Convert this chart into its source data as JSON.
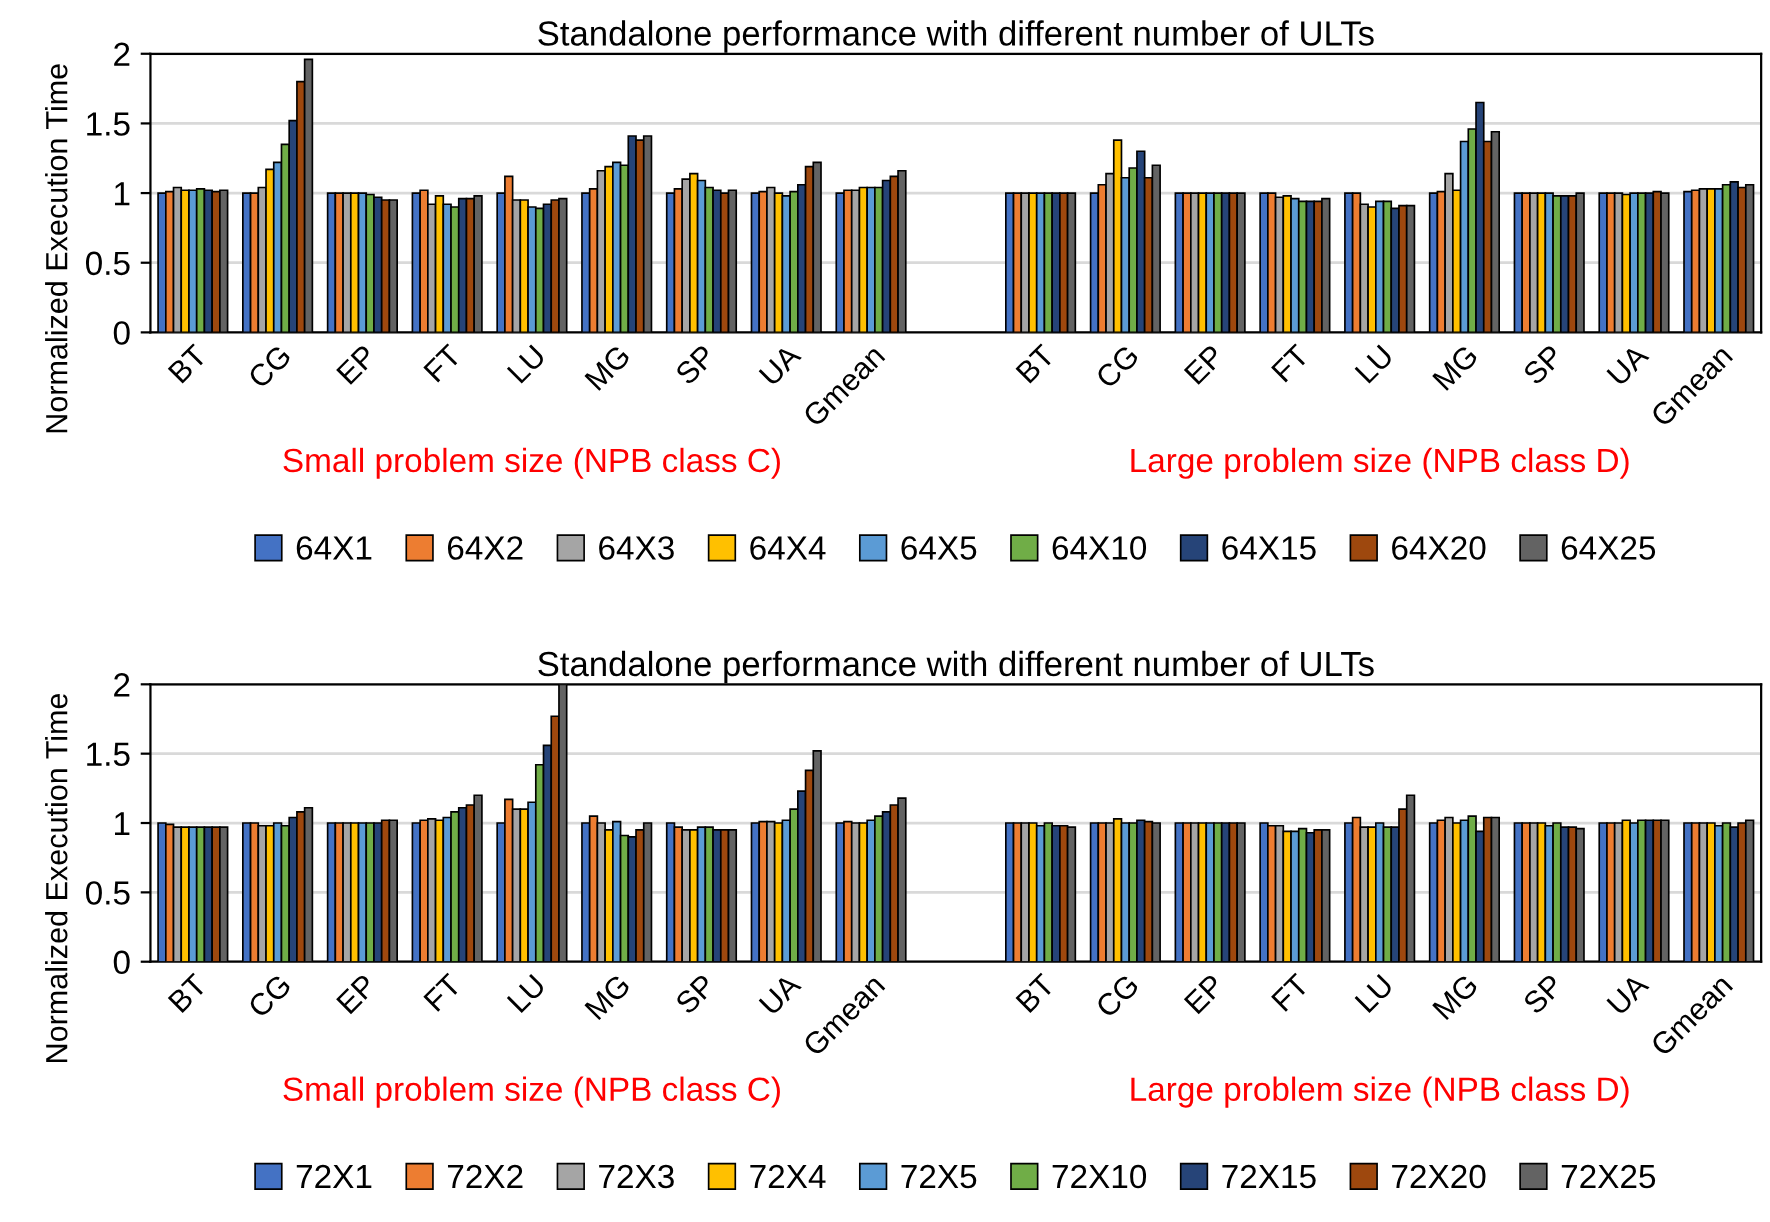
{
  "chart_data": [
    {
      "type": "bar",
      "title": "Standalone performance with different number of ULTs",
      "ylabel": "Normalized Execution Time",
      "categories": [
        "BT",
        "CG",
        "EP",
        "FT",
        "LU",
        "MG",
        "SP",
        "UA",
        "Gmean",
        null,
        "BT",
        "CG",
        "EP",
        "FT",
        "LU",
        "MG",
        "SP",
        "UA",
        "Gmean"
      ],
      "series": [
        {
          "name": "64X1",
          "color": "#4472c4",
          "values": [
            1,
            1,
            1,
            1,
            1,
            1,
            1,
            1,
            1,
            null,
            1,
            1,
            1,
            1,
            1,
            1,
            1,
            1,
            1.01
          ]
        },
        {
          "name": "64X2",
          "color": "#ed7d31",
          "values": [
            1.01,
            1,
            1,
            1.02,
            1.12,
            1.03,
            1.03,
            1.01,
            1.02,
            null,
            1,
            1.06,
            1,
            1,
            1,
            1.01,
            1,
            1,
            1.02
          ]
        },
        {
          "name": "64X3",
          "color": "#a5a5a5",
          "values": [
            1.04,
            1.04,
            1,
            0.92,
            0.95,
            1.16,
            1.1,
            1.04,
            1.02,
            null,
            1,
            1.14,
            1,
            0.97,
            0.92,
            1.14,
            1,
            1,
            1.03
          ]
        },
        {
          "name": "64X4",
          "color": "#ffc000",
          "values": [
            1.02,
            1.17,
            1,
            0.98,
            0.95,
            1.19,
            1.14,
            1.0,
            1.04,
            null,
            1,
            1.38,
            1,
            0.98,
            0.9,
            1.02,
            1,
            0.99,
            1.03
          ]
        },
        {
          "name": "64X5",
          "color": "#5b9bd5",
          "values": [
            1.02,
            1.22,
            1,
            0.92,
            0.9,
            1.22,
            1.09,
            0.98,
            1.04,
            null,
            1,
            1.11,
            1,
            0.96,
            0.94,
            1.37,
            1,
            1,
            1.03
          ]
        },
        {
          "name": "64X10",
          "color": "#70ad47",
          "values": [
            1.03,
            1.35,
            0.99,
            0.9,
            0.89,
            1.2,
            1.04,
            1.01,
            1.04,
            null,
            1,
            1.18,
            1,
            0.94,
            0.94,
            1.46,
            0.98,
            1,
            1.06
          ]
        },
        {
          "name": "64X15",
          "color": "#264478",
          "values": [
            1.02,
            1.52,
            0.97,
            0.96,
            0.92,
            1.41,
            1.02,
            1.06,
            1.09,
            null,
            1,
            1.3,
            1,
            0.94,
            0.89,
            1.65,
            0.98,
            1,
            1.08
          ]
        },
        {
          "name": "64X20",
          "color": "#9e480e",
          "values": [
            1.01,
            1.8,
            0.95,
            0.96,
            0.95,
            1.38,
            1.0,
            1.19,
            1.12,
            null,
            1,
            1.11,
            1,
            0.94,
            0.91,
            1.37,
            0.98,
            1.01,
            1.04
          ]
        },
        {
          "name": "64X25",
          "color": "#636363",
          "values": [
            1.02,
            1.96,
            0.95,
            0.98,
            0.96,
            1.41,
            1.02,
            1.22,
            1.16,
            null,
            1,
            1.2,
            1,
            0.96,
            0.91,
            1.44,
            1,
            1,
            1.06
          ]
        }
      ],
      "ylim": [
        0,
        2
      ],
      "yticks": [
        0,
        0.5,
        1,
        1.5,
        2
      ],
      "grid": "y",
      "legend": "bottom",
      "annotations": [
        "Small problem size (NPB class C)",
        "Large problem size (NPB class D)"
      ]
    },
    {
      "type": "bar",
      "title": "Standalone performance with different number of ULTs",
      "ylabel": "Normalized Execution Time",
      "categories": [
        "BT",
        "CG",
        "EP",
        "FT",
        "LU",
        "MG",
        "SP",
        "UA",
        "Gmean",
        null,
        "BT",
        "CG",
        "EP",
        "FT",
        "LU",
        "MG",
        "SP",
        "UA",
        "Gmean"
      ],
      "series": [
        {
          "name": "72X1",
          "color": "#4472c4",
          "values": [
            1,
            1,
            1,
            1,
            1,
            1,
            1,
            1,
            1,
            null,
            1,
            1,
            1,
            1,
            1,
            1,
            1,
            1,
            1
          ]
        },
        {
          "name": "72X2",
          "color": "#ed7d31",
          "values": [
            0.99,
            1,
            1,
            1.02,
            1.17,
            1.05,
            0.97,
            1.01,
            1.01,
            null,
            1,
            1,
            1,
            0.98,
            1.04,
            1.02,
            1,
            1,
            1
          ]
        },
        {
          "name": "72X3",
          "color": "#a5a5a5",
          "values": [
            0.97,
            0.98,
            1,
            1.03,
            1.1,
            1,
            0.95,
            1.01,
            1,
            null,
            1,
            1,
            1,
            0.98,
            0.97,
            1.04,
            1,
            1,
            1
          ]
        },
        {
          "name": "72X4",
          "color": "#ffc000",
          "values": [
            0.97,
            0.98,
            1,
            1.02,
            1.1,
            0.95,
            0.95,
            1,
            1,
            null,
            1,
            1.03,
            1,
            0.94,
            0.97,
            1,
            1,
            1.02,
            1
          ]
        },
        {
          "name": "72X5",
          "color": "#5b9bd5",
          "values": [
            0.97,
            1,
            1,
            1.04,
            1.15,
            1.01,
            0.97,
            1.02,
            1.02,
            null,
            0.98,
            1,
            1,
            0.94,
            1,
            1.02,
            0.98,
            1,
            0.98
          ]
        },
        {
          "name": "72X10",
          "color": "#70ad47",
          "values": [
            0.97,
            0.98,
            1,
            1.08,
            1.42,
            0.91,
            0.97,
            1.1,
            1.05,
            null,
            1,
            1,
            1,
            0.96,
            0.97,
            1.05,
            1,
            1.02,
            1
          ]
        },
        {
          "name": "72X15",
          "color": "#264478",
          "values": [
            0.97,
            1.04,
            1,
            1.11,
            1.56,
            0.9,
            0.95,
            1.23,
            1.08,
            null,
            0.98,
            1.02,
            1,
            0.93,
            0.97,
            0.94,
            0.97,
            1.02,
            0.97
          ]
        },
        {
          "name": "72X20",
          "color": "#9e480e",
          "values": [
            0.97,
            1.08,
            1.02,
            1.13,
            1.77,
            0.95,
            0.95,
            1.38,
            1.13,
            null,
            0.98,
            1.01,
            1,
            0.95,
            1.1,
            1.04,
            0.97,
            1.02,
            1
          ]
        },
        {
          "name": "72X25",
          "color": "#636363",
          "values": [
            0.97,
            1.11,
            1.02,
            1.2,
            2,
            1,
            0.95,
            1.52,
            1.18,
            null,
            0.97,
            1,
            1,
            0.95,
            1.2,
            1.04,
            0.96,
            1.02,
            1.02
          ]
        }
      ],
      "ylim": [
        0,
        2
      ],
      "yticks": [
        0,
        0.5,
        1,
        1.5,
        2
      ],
      "grid": "y",
      "legend": "bottom",
      "annotations": [
        "Small problem size (NPB class C)",
        "Large problem size (NPB class D)"
      ]
    }
  ]
}
